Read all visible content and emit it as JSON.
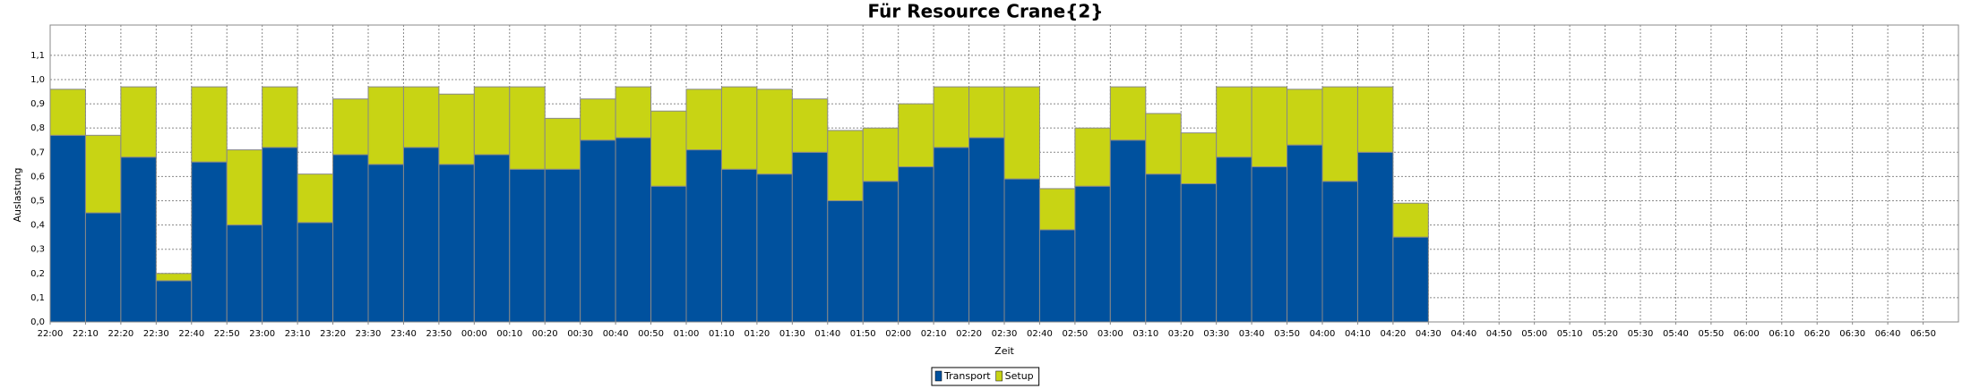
{
  "chart_data": {
    "type": "stacked_bar",
    "title": "Für Resource Crane{2}",
    "xlabel": "Zeit",
    "ylabel": "Auslastung",
    "categories": [
      "22:00",
      "22:10",
      "22:20",
      "22:30",
      "22:40",
      "22:50",
      "23:00",
      "23:10",
      "23:20",
      "23:30",
      "23:40",
      "23:50",
      "00:00",
      "00:10",
      "00:20",
      "00:30",
      "00:40",
      "00:50",
      "01:00",
      "01:10",
      "01:20",
      "01:30",
      "01:40",
      "01:50",
      "02:00",
      "02:10",
      "02:20",
      "02:30",
      "02:40",
      "02:50",
      "03:00",
      "03:10",
      "03:20",
      "03:30",
      "03:40",
      "03:50",
      "04:00",
      "04:10",
      "04:20",
      "04:30",
      "04:40",
      "04:50",
      "05:00",
      "05:10",
      "05:20",
      "05:30",
      "05:40",
      "05:50",
      "06:00",
      "06:10",
      "06:20",
      "06:30",
      "06:40",
      "06:50"
    ],
    "series": [
      {
        "name": "Transport",
        "color": "#00519e",
        "values": [
          0.77,
          0.45,
          0.68,
          0.17,
          0.66,
          0.4,
          0.72,
          0.41,
          0.69,
          0.65,
          0.72,
          0.65,
          0.69,
          0.63,
          0.63,
          0.75,
          0.76,
          0.56,
          0.71,
          0.63,
          0.61,
          0.7,
          0.5,
          0.58,
          0.64,
          0.72,
          0.76,
          0.59,
          0.38,
          0.56,
          0.75,
          0.61,
          0.57,
          0.68,
          0.64,
          0.73,
          0.58,
          0.7,
          0.35,
          null,
          null,
          null,
          null,
          null,
          null,
          null,
          null,
          null,
          null,
          null,
          null,
          null,
          null,
          null
        ]
      },
      {
        "name": "Setup",
        "color": "#c8d414",
        "values": [
          0.19,
          0.32,
          0.29,
          0.03,
          0.31,
          0.31,
          0.25,
          0.2,
          0.23,
          0.32,
          0.25,
          0.29,
          0.28,
          0.34,
          0.21,
          0.17,
          0.21,
          0.31,
          0.25,
          0.34,
          0.35,
          0.22,
          0.29,
          0.22,
          0.26,
          0.25,
          0.21,
          0.38,
          0.17,
          0.24,
          0.22,
          0.25,
          0.21,
          0.29,
          0.33,
          0.23,
          0.39,
          0.27,
          0.14,
          null,
          null,
          null,
          null,
          null,
          null,
          null,
          null,
          null,
          null,
          null,
          null,
          null,
          null,
          null
        ]
      }
    ],
    "ylim": [
      0,
      1.225
    ],
    "yticks": [
      {
        "value": 0,
        "label": "0,0"
      },
      {
        "value": 0.1,
        "label": "0,1"
      },
      {
        "value": 0.2,
        "label": "0,2"
      },
      {
        "value": 0.3,
        "label": "0,3"
      },
      {
        "value": 0.4,
        "label": "0,4"
      },
      {
        "value": 0.5,
        "label": "0,5"
      },
      {
        "value": 0.6,
        "label": "0,6"
      },
      {
        "value": 0.7,
        "label": "0,7"
      },
      {
        "value": 0.8,
        "label": "0,8"
      },
      {
        "value": 0.9,
        "label": "0,9"
      },
      {
        "value": 1.0,
        "label": "1,0"
      },
      {
        "value": 1.1,
        "label": "1,1"
      }
    ],
    "grid": true,
    "legend": "bottom"
  }
}
